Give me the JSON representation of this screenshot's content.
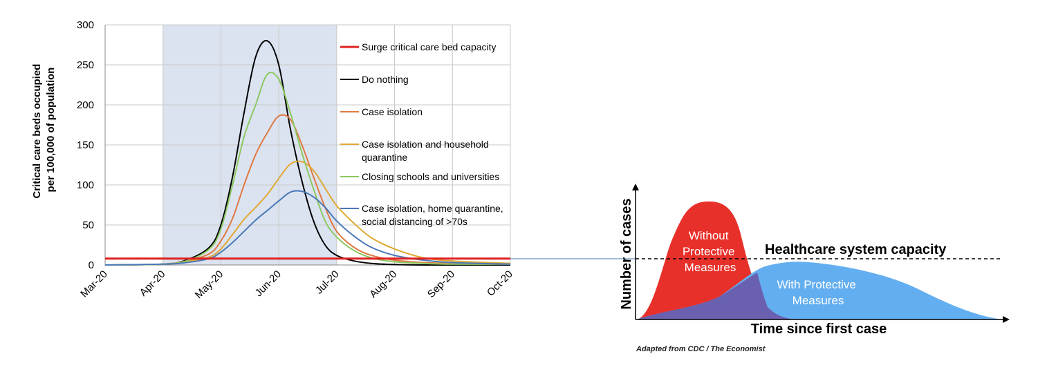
{
  "chart_data": [
    {
      "type": "line",
      "title": "",
      "xlabel": "",
      "ylabel": "Critical care beds occupied per 100,000 of population",
      "ylabel_lines": [
        "Critical care beds occupied",
        "per 100,000 of population"
      ],
      "x_ticks": [
        "Mar-20",
        "Apr-20",
        "May-20",
        "Jun-20",
        "Jul-20",
        "Aug-20",
        "Sep-20",
        "Oct-20"
      ],
      "xlim": [
        0,
        7
      ],
      "ylim": [
        0,
        300
      ],
      "y_ticks": [
        0,
        50,
        100,
        150,
        200,
        250,
        300
      ],
      "intervention_window": [
        1,
        4
      ],
      "capacity_value": 8,
      "legend_position": "right-inside",
      "series": [
        {
          "name": "Surge critical care bed capacity",
          "label_lines": [
            "Surge critical care bed capacity"
          ],
          "color": "#e02020",
          "x": [
            0,
            7
          ],
          "values": [
            8,
            8
          ]
        },
        {
          "name": "Do nothing",
          "label_lines": [
            "Do nothing"
          ],
          "color": "#000000",
          "x": [
            0,
            1,
            1.4,
            1.8,
            2.0,
            2.2,
            2.4,
            2.6,
            2.8,
            3.0,
            3.2,
            3.4,
            3.6,
            3.8,
            4.0,
            4.3,
            4.6,
            5,
            5.5,
            6,
            7
          ],
          "values": [
            0,
            1,
            6,
            22,
            50,
            110,
            190,
            260,
            280,
            250,
            170,
            105,
            55,
            25,
            12,
            5,
            2,
            0.5,
            0,
            0,
            0
          ]
        },
        {
          "name": "Case isolation",
          "label_lines": [
            "Case isolation"
          ],
          "color": "#e07840",
          "x": [
            0,
            1,
            1.4,
            1.8,
            2.0,
            2.2,
            2.4,
            2.6,
            2.8,
            3.0,
            3.2,
            3.4,
            3.6,
            3.8,
            4.0,
            4.3,
            4.6,
            5,
            5.5,
            6,
            7
          ],
          "values": [
            0,
            1,
            5,
            14,
            30,
            58,
            100,
            138,
            165,
            186,
            182,
            150,
            110,
            72,
            42,
            22,
            12,
            6,
            3,
            2,
            1
          ]
        },
        {
          "name": "Case isolation and household quarantine",
          "label_lines": [
            "Case isolation and household",
            "quarantine"
          ],
          "color": "#e0a830",
          "x": [
            0,
            1,
            1.4,
            1.8,
            2.0,
            2.2,
            2.4,
            2.6,
            2.8,
            3.0,
            3.2,
            3.4,
            3.6,
            3.8,
            4.0,
            4.3,
            4.6,
            5,
            5.5,
            6,
            7
          ],
          "values": [
            0,
            1,
            4,
            10,
            20,
            38,
            57,
            72,
            88,
            108,
            126,
            129,
            118,
            96,
            74,
            52,
            34,
            20,
            9,
            5,
            2
          ]
        },
        {
          "name": "Closing schools and universities",
          "label_lines": [
            "Closing schools and universities"
          ],
          "color": "#8cc860",
          "x": [
            0,
            1,
            1.4,
            1.8,
            2.0,
            2.2,
            2.4,
            2.6,
            2.8,
            3.0,
            3.2,
            3.4,
            3.6,
            3.8,
            4.0,
            4.3,
            4.6,
            5,
            5.5,
            6,
            7
          ],
          "values": [
            0,
            1,
            5,
            20,
            45,
            100,
            160,
            200,
            238,
            232,
            190,
            140,
            95,
            55,
            35,
            18,
            9,
            4,
            2,
            1,
            1
          ]
        },
        {
          "name": "Case isolation, home quarantine, social distancing of >70s",
          "label_lines": [
            "Case isolation, home quarantine,",
            "social distancing of >70s"
          ],
          "color": "#4a78b8",
          "x": [
            0,
            1,
            1.4,
            1.8,
            2.0,
            2.2,
            2.4,
            2.6,
            2.8,
            3.0,
            3.2,
            3.4,
            3.6,
            3.8,
            4.0,
            4.3,
            4.6,
            5,
            5.5,
            6,
            7
          ],
          "values": [
            0,
            1,
            3,
            8,
            16,
            28,
            42,
            56,
            68,
            80,
            91,
            92,
            85,
            72,
            55,
            36,
            22,
            12,
            6,
            3,
            1
          ]
        }
      ]
    },
    {
      "type": "area",
      "title": "",
      "xlabel": "Time since first case",
      "ylabel": "Number of cases",
      "capacity_label": "Healthcare system capacity",
      "series": [
        {
          "name": "Without Protective Measures",
          "label_lines": [
            "Without",
            "Protective",
            "Measures"
          ],
          "color": "#e8302a"
        },
        {
          "name": "With Protective Measures",
          "label_lines": [
            "With Protective",
            "Measures"
          ],
          "color": "#63aef0"
        }
      ],
      "overlap_color": "#6a60b0",
      "credit": "Adapted from CDC / The Economist"
    }
  ]
}
